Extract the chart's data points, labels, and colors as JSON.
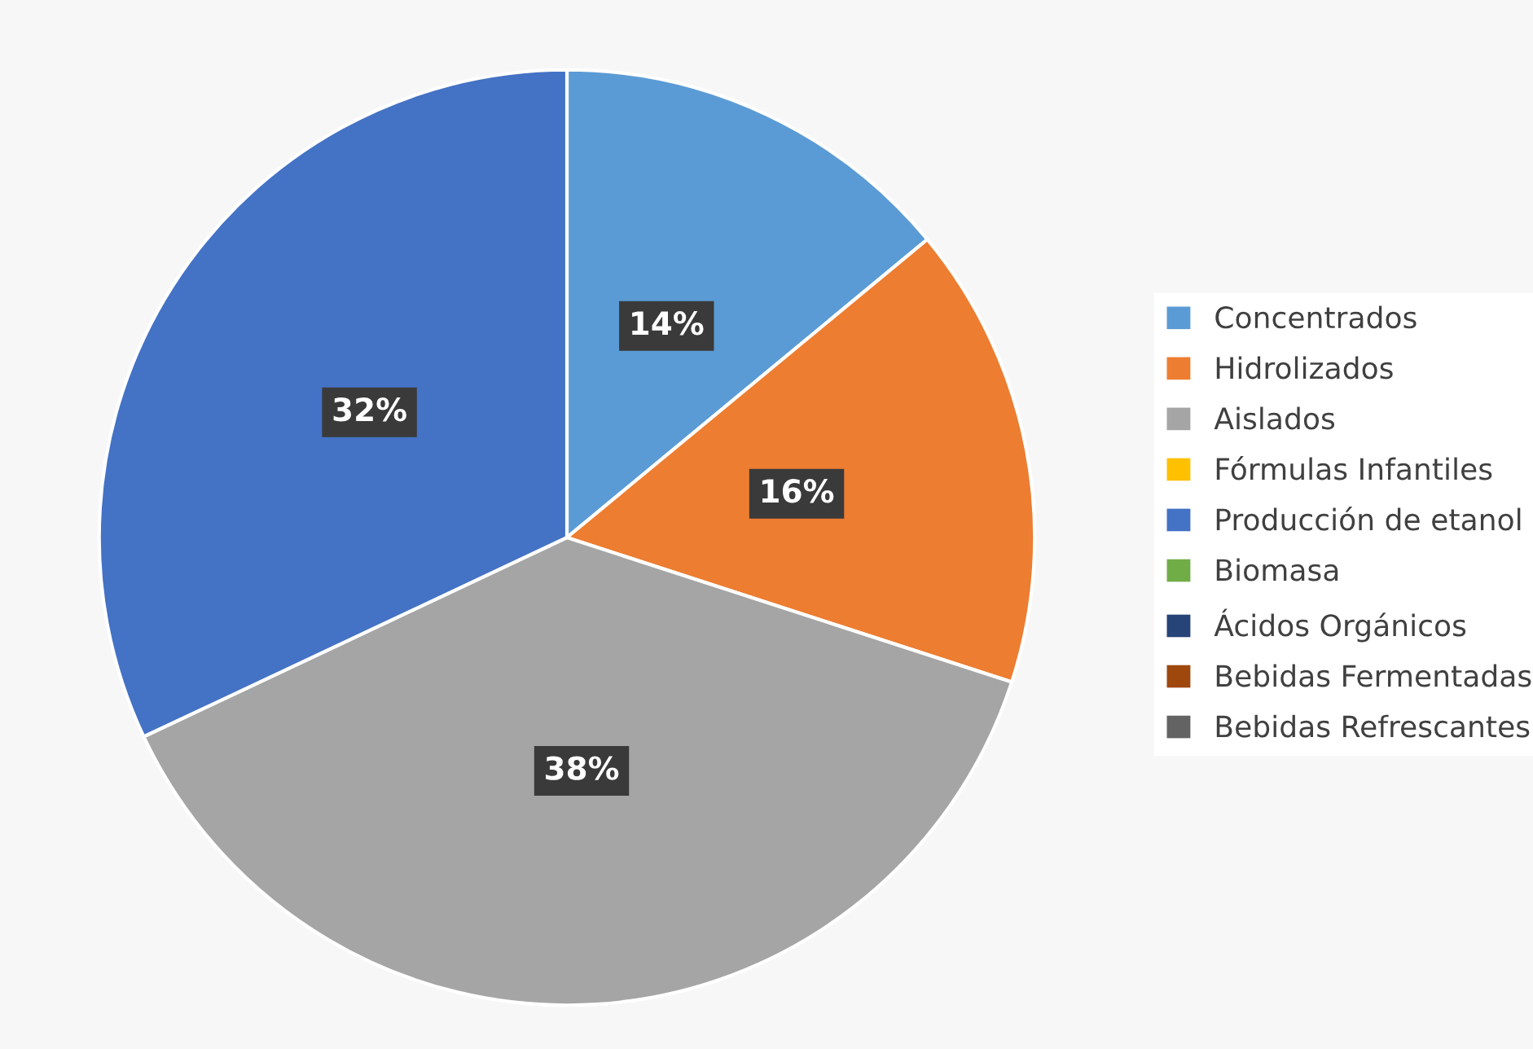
{
  "chart_data": {
    "type": "pie",
    "categories": [
      "Concentrados",
      "Hidrolizados",
      "Aislados",
      "Fórmulas Infantiles",
      "Producción de etanol",
      "Biomasa",
      "Ácidos Orgánicos",
      "Bebidas Fermentadas",
      "Bebidas Refrescantes"
    ],
    "values": [
      14,
      16,
      38,
      0,
      32,
      0,
      0,
      0,
      0
    ],
    "colors": [
      "#5b9bd5",
      "#ed7d31",
      "#a5a5a5",
      "#ffc000",
      "#4472c4",
      "#70ad47",
      "#264478",
      "#9e480e",
      "#636363"
    ],
    "value_labels": [
      "14%",
      "16%",
      "38%",
      null,
      "32%",
      null,
      null,
      null,
      null
    ],
    "legend": "right"
  }
}
